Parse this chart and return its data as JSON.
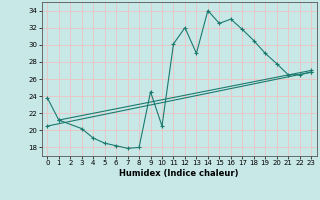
{
  "xlabel": "Humidex (Indice chaleur)",
  "xlim": [
    -0.5,
    23.5
  ],
  "ylim": [
    17,
    35
  ],
  "yticks": [
    18,
    20,
    22,
    24,
    26,
    28,
    30,
    32,
    34
  ],
  "xticks": [
    0,
    1,
    2,
    3,
    4,
    5,
    6,
    7,
    8,
    9,
    10,
    11,
    12,
    13,
    14,
    15,
    16,
    17,
    18,
    19,
    20,
    21,
    22,
    23
  ],
  "bg_color": "#c8e8e8",
  "grid_color": "#e8c8c8",
  "line_color": "#1a7a6e",
  "curve1_x": [
    0,
    1,
    3,
    4,
    5,
    6,
    7,
    8,
    9,
    10,
    11,
    12,
    13,
    14,
    15,
    16,
    17,
    18,
    19,
    20,
    21,
    22,
    23
  ],
  "curve1_y": [
    23.8,
    21.2,
    20.2,
    19.1,
    18.5,
    18.2,
    17.9,
    18.0,
    24.5,
    20.5,
    30.1,
    32.0,
    29.0,
    34.0,
    32.5,
    33.0,
    31.8,
    30.5,
    29.0,
    27.8,
    26.5,
    26.5,
    26.8
  ],
  "line2_x": [
    0,
    23
  ],
  "line2_y": [
    20.5,
    26.8
  ],
  "line3_x": [
    1,
    23
  ],
  "line3_y": [
    21.2,
    27.0
  ]
}
